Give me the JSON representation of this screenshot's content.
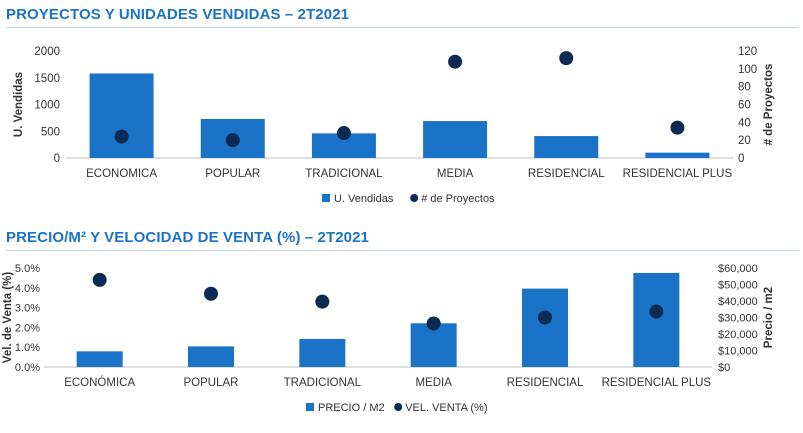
{
  "chart_data": [
    {
      "type": "bar",
      "title": "PROYECTOS Y UNIDADES VENDIDAS – 2T2021",
      "categories": [
        "ECONOMICA",
        "POPULAR",
        "TRADICIONAL",
        "MEDIA",
        "RESIDENCIAL",
        "RESIDENCIAL PLUS"
      ],
      "ylabel": "U. Vendidas",
      "y2label": "# de Proyectos",
      "ylim": [
        0,
        2000
      ],
      "y2lim": [
        0,
        120
      ],
      "yticks": [
        "0",
        "500",
        "1000",
        "1500",
        "2000"
      ],
      "y2ticks": [
        "0",
        "20",
        "40",
        "60",
        "80",
        "100",
        "120"
      ],
      "series": [
        {
          "name": "U. Vendidas",
          "type": "bar",
          "axis": "left",
          "values": [
            1580,
            730,
            460,
            690,
            410,
            100
          ]
        },
        {
          "name": "# de Proyectos",
          "type": "scatter",
          "axis": "right",
          "values": [
            24,
            20,
            28,
            108,
            112,
            34
          ]
        }
      ],
      "legend_position": "bottom",
      "colors": {
        "bar": "#1a73c7",
        "dot": "#0d2b52"
      }
    },
    {
      "type": "bar",
      "title": "PRECIO/M² Y VELOCIDAD DE VENTA (%) – 2T2021",
      "categories": [
        "ECONÓMICA",
        "POPULAR",
        "TRADICIONAL",
        "MEDIA",
        "RESIDENCIAL",
        "RESIDENCIAL PLUS"
      ],
      "ylabel": "Vel. de Venta (%)",
      "y2label": "Precio / m2",
      "ylim": [
        0,
        5
      ],
      "y2lim": [
        0,
        60000
      ],
      "yticks": [
        "0.0%",
        "1.0%",
        "2.0%",
        "3.0%",
        "4.0%",
        "5.0%"
      ],
      "y2ticks": [
        "$0",
        "$10,000",
        "$20,000",
        "$30,000",
        "$40,000",
        "$50,000",
        "$60,000"
      ],
      "series": [
        {
          "name": "PRECIO / M2",
          "type": "bar",
          "axis": "right",
          "values": [
            9500,
            12500,
            17000,
            26500,
            47500,
            57000
          ]
        },
        {
          "name": "VEL. VENTA (%)",
          "type": "scatter",
          "axis": "left",
          "values": [
            4.4,
            3.7,
            3.3,
            2.2,
            2.5,
            2.8
          ]
        }
      ],
      "legend_position": "bottom",
      "colors": {
        "bar": "#1a73c7",
        "dot": "#0d2b52"
      }
    }
  ]
}
